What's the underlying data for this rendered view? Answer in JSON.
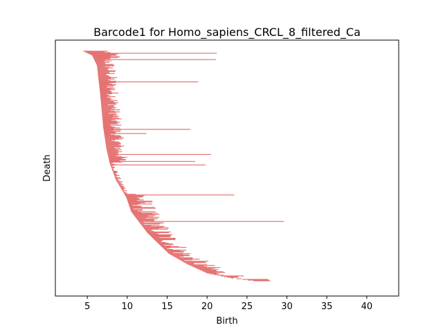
{
  "chart_data": {
    "type": "barcode",
    "title": "Barcode1 for Homo_sapiens_CRCL_8_filtered_Ca",
    "xlabel": "Birth",
    "ylabel": "Death",
    "xlim": [
      1,
      44
    ],
    "xticks": [
      5,
      10,
      15,
      20,
      25,
      30,
      35,
      40
    ],
    "grid": false,
    "legend": "none",
    "bar_color": "#e57373",
    "bar_count": 330,
    "anchors": [
      [
        0,
        4.5
      ],
      [
        6,
        5.6
      ],
      [
        20,
        6.2
      ],
      [
        60,
        6.6
      ],
      [
        110,
        7.0
      ],
      [
        140,
        7.4
      ],
      [
        160,
        7.8
      ],
      [
        185,
        8.6
      ],
      [
        200,
        9.4
      ],
      [
        210,
        9.9
      ],
      [
        230,
        10.5
      ],
      [
        260,
        12.5
      ],
      [
        290,
        15.2
      ],
      [
        305,
        17.5
      ],
      [
        318,
        20.0
      ],
      [
        325,
        23.0
      ],
      [
        330,
        26.5
      ]
    ],
    "long_bars": [
      {
        "birth": 7.5,
        "death": 21.2
      },
      {
        "birth": 7.6,
        "death": 21.1
      },
      {
        "birth": 7.8,
        "death": 18.9
      },
      {
        "birth": 8.8,
        "death": 17.9
      },
      {
        "birth": 9.2,
        "death": 12.4
      },
      {
        "birth": 10.6,
        "death": 20.5
      },
      {
        "birth": 11.5,
        "death": 18.5
      },
      {
        "birth": 14.8,
        "death": 19.8
      },
      {
        "birth": 19.6,
        "death": 23.4
      },
      {
        "birth": 26.7,
        "death": 29.6
      }
    ]
  }
}
